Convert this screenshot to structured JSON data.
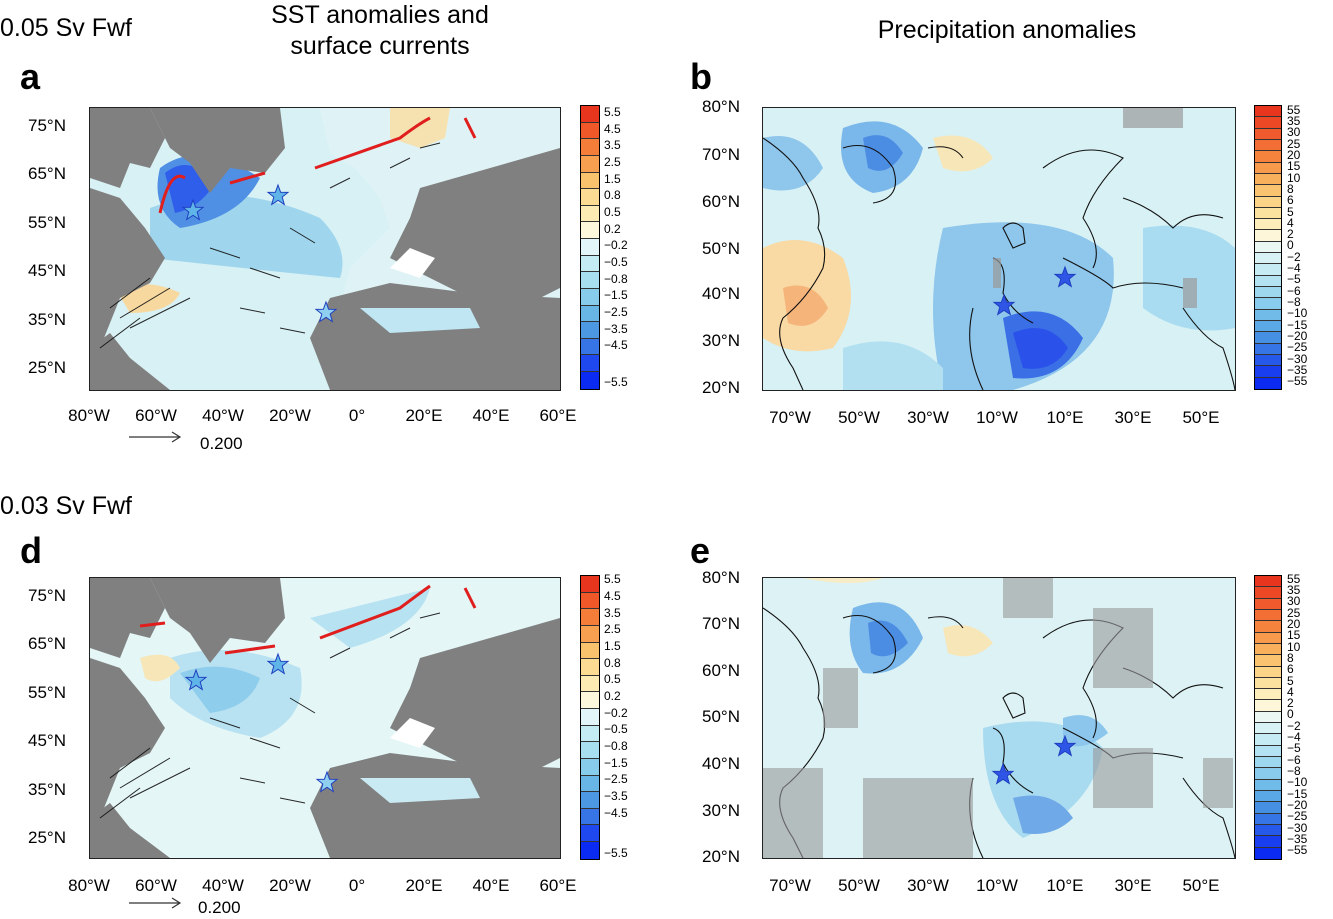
{
  "row_titles": {
    "top": "0.05 Sv Fwf",
    "bottom": "0.03 Sv Fwf"
  },
  "column_titles": {
    "sst_line1": "SST anomalies and",
    "sst_line2": "surface currents",
    "precip": "Precipitation anomalies"
  },
  "panels": {
    "a": {
      "letter": "a",
      "variable": "SST anomalies and surface currents",
      "forcing": "0.05 Sv Fwf"
    },
    "b": {
      "letter": "b",
      "variable": "Precipitation anomalies",
      "forcing": "0.05 Sv Fwf"
    },
    "d": {
      "letter": "d",
      "variable": "SST anomalies and surface currents",
      "forcing": "0.03 Sv Fwf"
    },
    "e": {
      "letter": "e",
      "variable": "Precipitation anomalies",
      "forcing": "0.03 Sv Fwf"
    }
  },
  "sst_axes": {
    "lat_labels": [
      "75°N",
      "65°N",
      "55°N",
      "45°N",
      "35°N",
      "25°N"
    ],
    "lon_labels": [
      "80°W",
      "60°W",
      "40°W",
      "20°W",
      "0°",
      "20°E",
      "40°E",
      "60°E"
    ]
  },
  "precip_axes": {
    "lat_labels": [
      "80°N",
      "70°N",
      "60°N",
      "50°N",
      "40°N",
      "30°N",
      "20°N"
    ],
    "lon_labels": [
      "70°W",
      "50°W",
      "30°W",
      "10°W",
      "10°E",
      "30°E",
      "50°E"
    ]
  },
  "vector_reference": {
    "value": "0.200"
  },
  "sst_colorbar": {
    "labels": [
      "5.5",
      "4.5",
      "3.5",
      "2.5",
      "1.5",
      "0.8",
      "0.5",
      "0.2",
      "−0.2",
      "−0.5",
      "−0.8",
      "−1.5",
      "−2.5",
      "−3.5",
      "−4.5",
      "−5.5"
    ],
    "colors": [
      "#e8361e",
      "#f0582a",
      "#f47d3a",
      "#f7a150",
      "#f9c36e",
      "#fbdc92",
      "#fcecb4",
      "#fdf7dc",
      "#e2f5f8",
      "#c4ecf4",
      "#a7dff0",
      "#87cdeb",
      "#67b6e6",
      "#4d98e2",
      "#3774e6",
      "#1f48ee",
      "#0c2bf2"
    ]
  },
  "precip_colorbar": {
    "labels": [
      "55",
      "35",
      "30",
      "25",
      "20",
      "15",
      "10",
      "8",
      "6",
      "5",
      "4",
      "2",
      "0",
      "−2",
      "−4",
      "−5",
      "−6",
      "−8",
      "−10",
      "−15",
      "−20",
      "−25",
      "−30",
      "−35",
      "−55"
    ],
    "colors": [
      "#e8361e",
      "#ec4825",
      "#f05a2c",
      "#f36e34",
      "#f5833e",
      "#f79a4b",
      "#f8b05c",
      "#fac370",
      "#fbd487",
      "#fce29f",
      "#fdedba",
      "#fdf6d8",
      "#eaf7f3",
      "#d9f2f6",
      "#c6ebf4",
      "#b3e3f2",
      "#9ed8ef",
      "#88cbec",
      "#71bbe8",
      "#5aa8e5",
      "#4690e4",
      "#3675e6",
      "#2659ea",
      "#183eef",
      "#0c2bf2"
    ]
  },
  "colors": {
    "land": "#808080",
    "star_outline": "#1f3fbf",
    "star_fill_precip": "#2f55e6",
    "overturning_line": "#e01e1e"
  }
}
